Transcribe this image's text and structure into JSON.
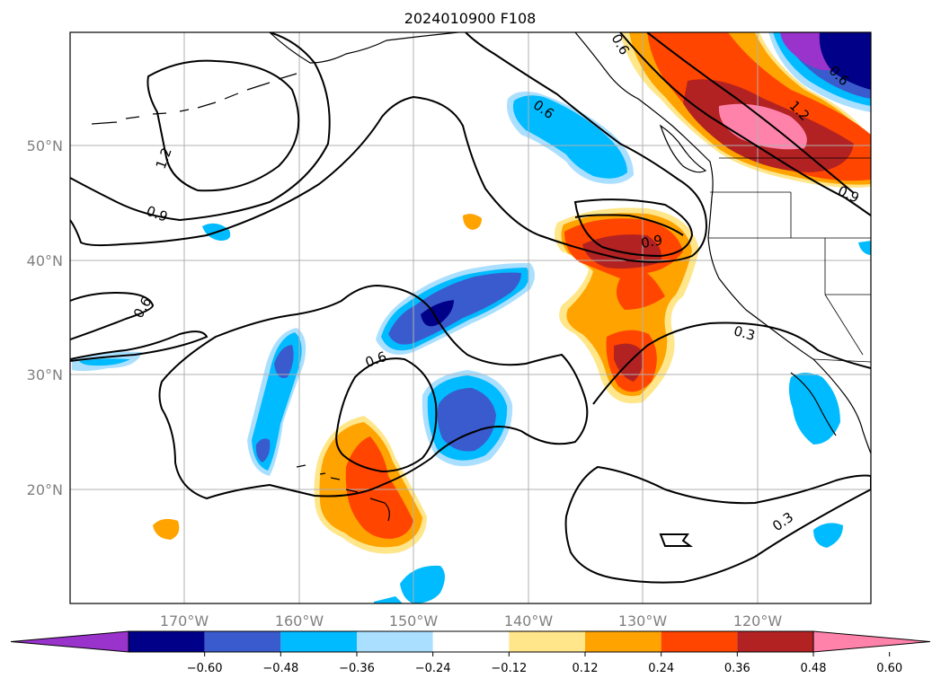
{
  "title": "2024010900 F108",
  "map": {
    "lat_labels": [
      "50°N",
      "40°N",
      "30°N",
      "20°N"
    ],
    "lon_labels": [
      "170°W",
      "160°W",
      "150°W",
      "140°W",
      "130°W",
      "120°W"
    ],
    "contour_labels": [
      "1.2",
      "0.9",
      "0.6",
      "0.6",
      "0.6",
      "0.9",
      "0.3",
      "1.2",
      "0.9",
      "0.6",
      "0.3",
      "0.6"
    ]
  },
  "colorbar": {
    "tick_labels": [
      "−0.60",
      "−0.48",
      "−0.36",
      "−0.24",
      "−0.12",
      "0.12",
      "0.24",
      "0.36",
      "0.48",
      "0.60"
    ],
    "colors": [
      "#9933cc",
      "#000088",
      "#3a5bcd",
      "#00bbff",
      "#aadfff",
      "#ffffff",
      "#ffe68a",
      "#ffa300",
      "#ff4500",
      "#b22222",
      "#ff82ab"
    ]
  },
  "colors": {
    "neg_violet": "#9933cc",
    "neg_navy": "#000088",
    "neg_royal": "#3a5bcd",
    "neg_sky": "#00bbff",
    "neg_light": "#aadfff",
    "pos_yellow": "#ffe68a",
    "pos_orange": "#ffa300",
    "pos_redorange": "#ff4500",
    "pos_firebrick": "#b22222",
    "pos_pink": "#ff82ab"
  }
}
